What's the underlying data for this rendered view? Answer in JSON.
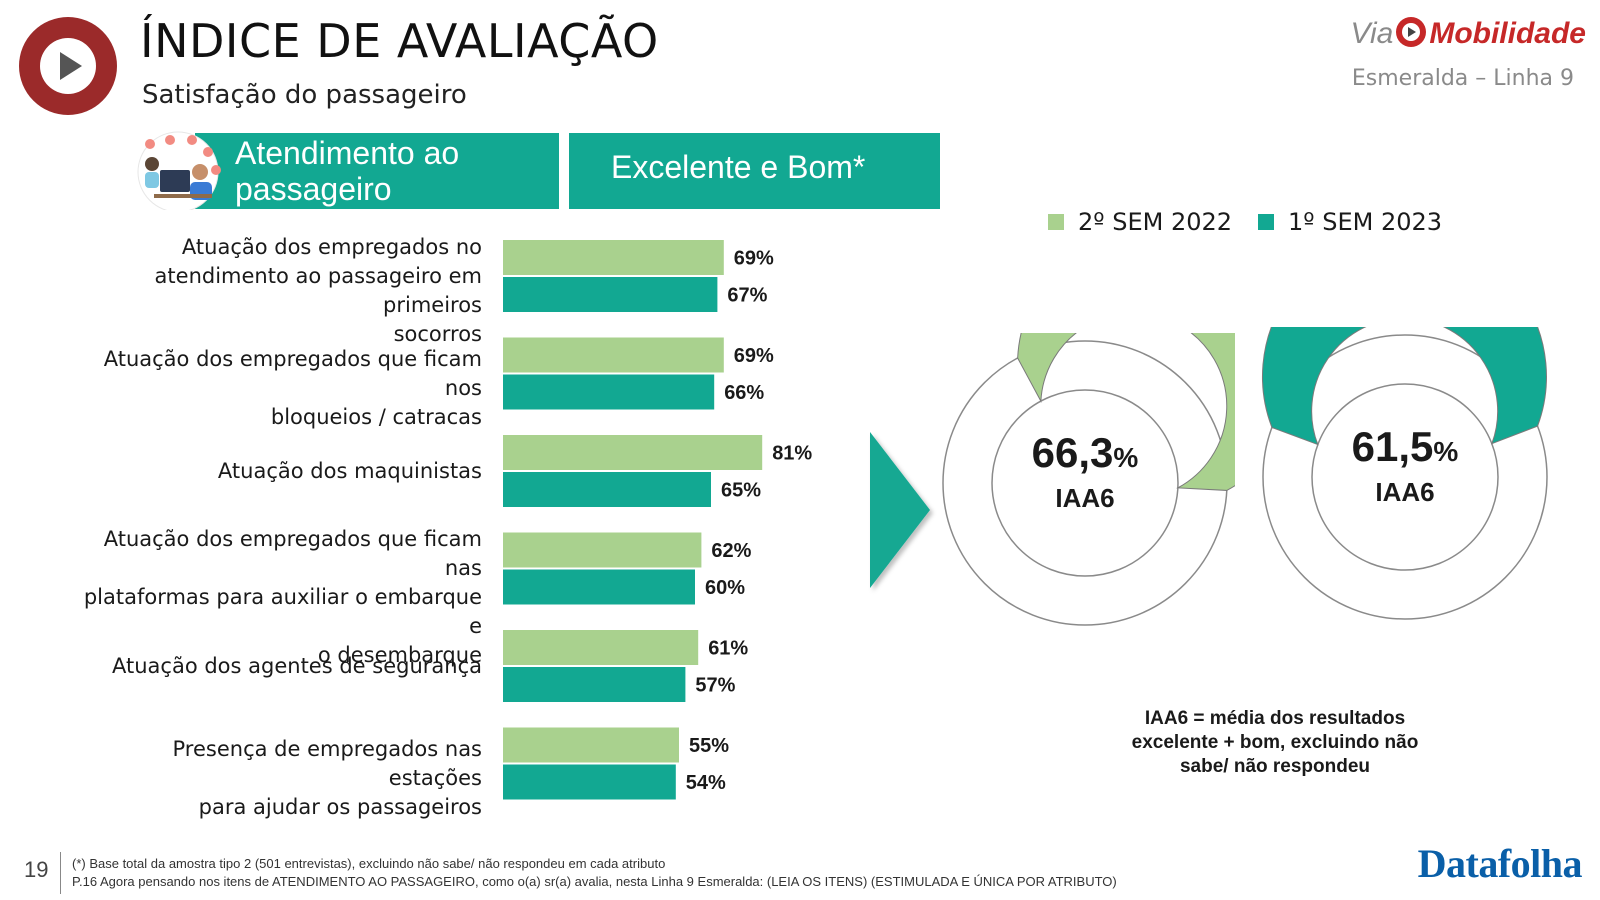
{
  "header": {
    "title": "ÍNDICE DE AVALIAÇÃO",
    "subtitle": "Satisfação do passageiro"
  },
  "logo": {
    "via": "Via",
    "mobilidade": "Mobilidade",
    "line": "Esmeralda – Linha 9"
  },
  "banner": {
    "section": "Atendimento ao\npassageiro",
    "metric": "Excelente e Bom*"
  },
  "colors": {
    "series_2022": "#a9d18e",
    "series_2023": "#12a892",
    "accent_red": "#c62828",
    "icon_red": "#9b2a2a"
  },
  "chart_data": [
    {
      "type": "bar",
      "orientation": "horizontal",
      "categories": [
        "Atuação dos empregados no\natendimento ao passageiro em primeiros\nsocorros",
        "Atuação dos empregados que ficam nos\nbloqueios / catracas",
        "Atuação dos maquinistas",
        "Atuação dos empregados que ficam nas\nplataformas para auxiliar o embarque e\no desembarque",
        "Atuação dos agentes de segurança",
        "Presença de empregados nas estações\npara ajudar os passageiros"
      ],
      "series": [
        {
          "name": "2º SEM 2022",
          "values": [
            69,
            69,
            81,
            62,
            61,
            55
          ]
        },
        {
          "name": "1º SEM 2023",
          "values": [
            67,
            66,
            65,
            60,
            57,
            54
          ]
        }
      ],
      "value_suffix": "%",
      "xlim": [
        0,
        100
      ],
      "legend": "top-right"
    },
    {
      "type": "pie",
      "variant": "donut",
      "series": "2º SEM 2022",
      "value": 66.3,
      "display_value": "66,3",
      "unit": "%",
      "label": "IAA6"
    },
    {
      "type": "pie",
      "variant": "donut",
      "series": "1º SEM 2023",
      "value": 61.5,
      "display_value": "61,5",
      "unit": "%",
      "label": "IAA6"
    }
  ],
  "legend": {
    "items": [
      "2º SEM 2022",
      "1º SEM 2023"
    ]
  },
  "note": "IAA6 = média dos resultados\nexcelente + bom, excluindo não\nsabe/ não respondeu",
  "footer": {
    "page_number": "19",
    "footnote_1": "(*) Base total da amostra tipo 2 (501 entrevistas), excluindo não sabe/ não respondeu em cada atributo",
    "footnote_2": "P.16 Agora pensando nos itens de ATENDIMENTO AO PASSAGEIRO, como o(a) sr(a) avalia, nesta Linha 9 Esmeralda: (LEIA OS ITENS) (ESTIMULADA E ÚNICA POR ATRIBUTO)",
    "brand": "Datafolha"
  }
}
